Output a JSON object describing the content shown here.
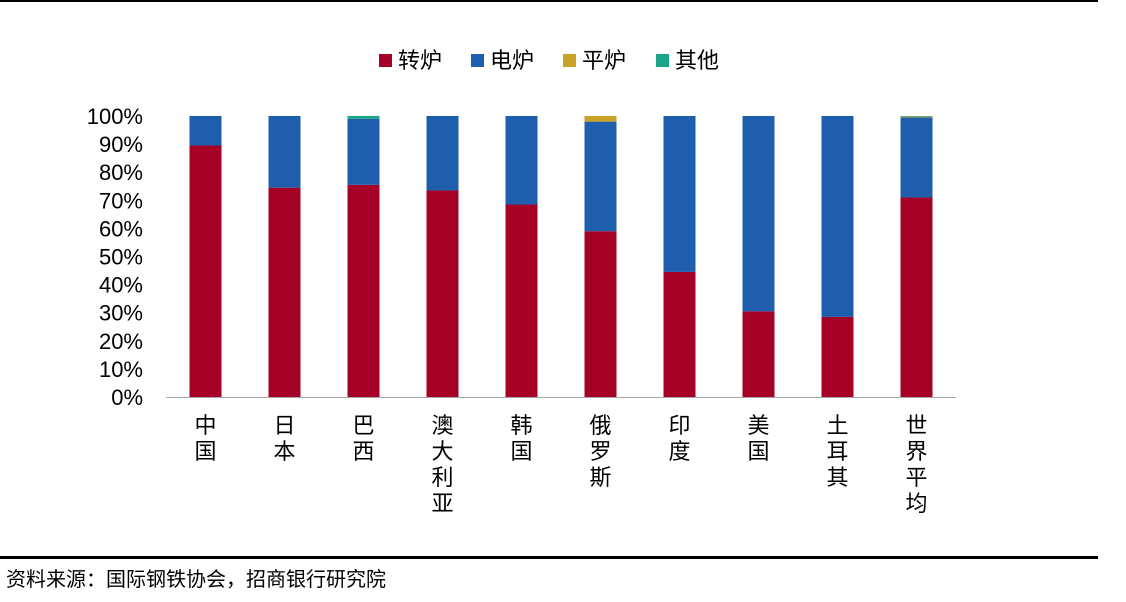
{
  "chart_data": {
    "type": "bar",
    "stacked": true,
    "categories": [
      "中国",
      "日本",
      "巴西",
      "澳大利亚",
      "韩国",
      "俄罗斯",
      "印度",
      "美国",
      "土耳其",
      "世界平均"
    ],
    "series": [
      {
        "name": "转炉",
        "color": "#A50026",
        "values": [
          89.5,
          74.5,
          75.5,
          73.5,
          68.5,
          59,
          44.5,
          30.5,
          28.5,
          71
        ]
      },
      {
        "name": "电炉",
        "color": "#1F5EAD",
        "values": [
          10.5,
          25.5,
          23.5,
          26.5,
          31.5,
          39,
          55.5,
          69.5,
          71.5,
          28.5
        ]
      },
      {
        "name": "平炉",
        "color": "#C9A227",
        "values": [
          0,
          0,
          0,
          0,
          0,
          2,
          0,
          0,
          0,
          0.3
        ]
      },
      {
        "name": "其他",
        "color": "#1AA589",
        "values": [
          0,
          0,
          1,
          0,
          0,
          0,
          0,
          0,
          0,
          0.2
        ]
      }
    ],
    "yticks": [
      "0%",
      "10%",
      "20%",
      "30%",
      "40%",
      "50%",
      "60%",
      "70%",
      "80%",
      "90%",
      "100%"
    ],
    "ylim": [
      0,
      100
    ],
    "legend_position": "top-center",
    "grid": false
  },
  "source": "资料来源：国际钢铁协会，招商银行研究院"
}
